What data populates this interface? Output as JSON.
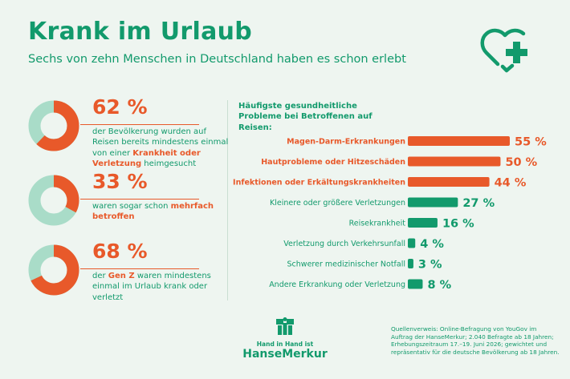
{
  "header": {
    "title": "Krank im Urlaub",
    "subtitle": "Sechs von zehn Menschen in Deutschland haben es schon erlebt",
    "icon": "heart-plus-icon"
  },
  "colors": {
    "green": "#129a6c",
    "orange": "#e8592a",
    "light_green": "#a9dcc8",
    "background": "#eef5f0"
  },
  "stats": [
    {
      "pct_label": "62 %",
      "value": 62,
      "text_parts": [
        {
          "t": "der Bevölkerung wurden auf Reisen bereits mindestens einmal von einer ",
          "hl": false
        },
        {
          "t": "Krankheit oder Verletzung",
          "hl": true
        },
        {
          "t": " heimgesucht",
          "hl": false
        }
      ]
    },
    {
      "pct_label": "33 %",
      "value": 33,
      "text_parts": [
        {
          "t": "waren sogar schon ",
          "hl": false
        },
        {
          "t": "mehrfach betroffen",
          "hl": true
        }
      ]
    },
    {
      "pct_label": "68 %",
      "value": 68,
      "text_parts": [
        {
          "t": "der ",
          "hl": false
        },
        {
          "t": "Gen Z",
          "hl": true
        },
        {
          "t": " waren mindestens einmal im Urlaub krank oder verletzt",
          "hl": false
        }
      ]
    }
  ],
  "chart_heading": "Häufigste gesundheitliche Probleme bei Betroffenen auf Reisen:",
  "chart_data": {
    "type": "bar",
    "orientation": "horizontal",
    "categories": [
      "Magen-Darm-Erkrankungen",
      "Hautprobleme oder Hitzeschäden",
      "Infektionen oder Erkältungskrankheiten",
      "Kleinere oder größere Verletzungen",
      "Reisekrankheit",
      "Verletzung durch Verkehrsunfall",
      "Schwerer medizinischer Notfall",
      "Andere Erkrankung oder Verletzung"
    ],
    "values": [
      55,
      50,
      44,
      27,
      16,
      4,
      3,
      8
    ],
    "value_labels": [
      "55 %",
      "50 %",
      "44 %",
      "27 %",
      "16 %",
      "4 %",
      "3 %",
      "8 %"
    ],
    "highlighted": [
      true,
      true,
      true,
      false,
      false,
      false,
      false,
      false
    ],
    "unit": "%",
    "xlim": [
      0,
      55
    ],
    "grid": false,
    "legend": "none"
  },
  "brand": {
    "tagline": "Hand in Hand ist",
    "name": "HanseMerkur",
    "icon": "hansemerkur-logo-icon"
  },
  "source": "Quellenverweis: Online-Befragung von YouGov im Auftrag der HanseMerkur; 2.040 Befragte ab 18 Jahren; Erhebungszeitraum 17.–19. Juni 2026; gewichtet und repräsentativ für die deutsche Bevölkerung ab 18 Jahren."
}
